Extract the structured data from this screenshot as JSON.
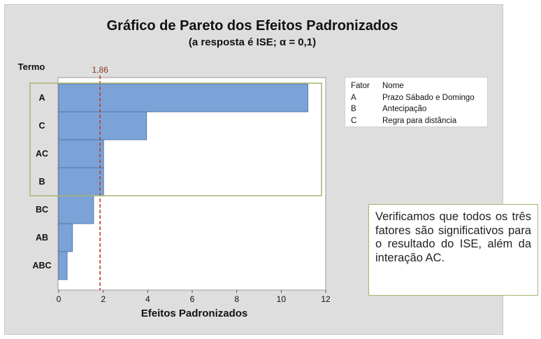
{
  "chart_data": {
    "type": "bar",
    "orientation": "horizontal",
    "title": "Gráfico de Pareto dos Efeitos Padronizados",
    "subtitle": "(a resposta é  ISE; α = 0,1)",
    "ylabel": "Termo",
    "xlabel": "Efeitos Padronizados",
    "categories": [
      "A",
      "C",
      "AC",
      "B",
      "BC",
      "AB",
      "ABC"
    ],
    "values": [
      11.2,
      3.95,
      2.02,
      2.02,
      1.57,
      0.62,
      0.38
    ],
    "xlim": [
      0,
      12
    ],
    "xticks": [
      "0",
      "2",
      "4",
      "6",
      "8",
      "10",
      "12"
    ],
    "reference_line": {
      "value": 1.86,
      "label": "1,86",
      "color": "#c0392b"
    },
    "bar_color": "#7ba3d8",
    "highlight_color": "#a8b370",
    "grid": false,
    "legend": {
      "placement": "right",
      "header": {
        "code": "Fator",
        "name": "Nome"
      },
      "entries": [
        {
          "code": "A",
          "name": "Prazo Sábado e Domingo"
        },
        {
          "code": "B",
          "name": "Antecipação"
        },
        {
          "code": "C",
          "name": "Regra para distância"
        }
      ]
    }
  },
  "note": "Verificamos que todos os três fatores são significativos para o resultado do ISE, além da interação AC."
}
